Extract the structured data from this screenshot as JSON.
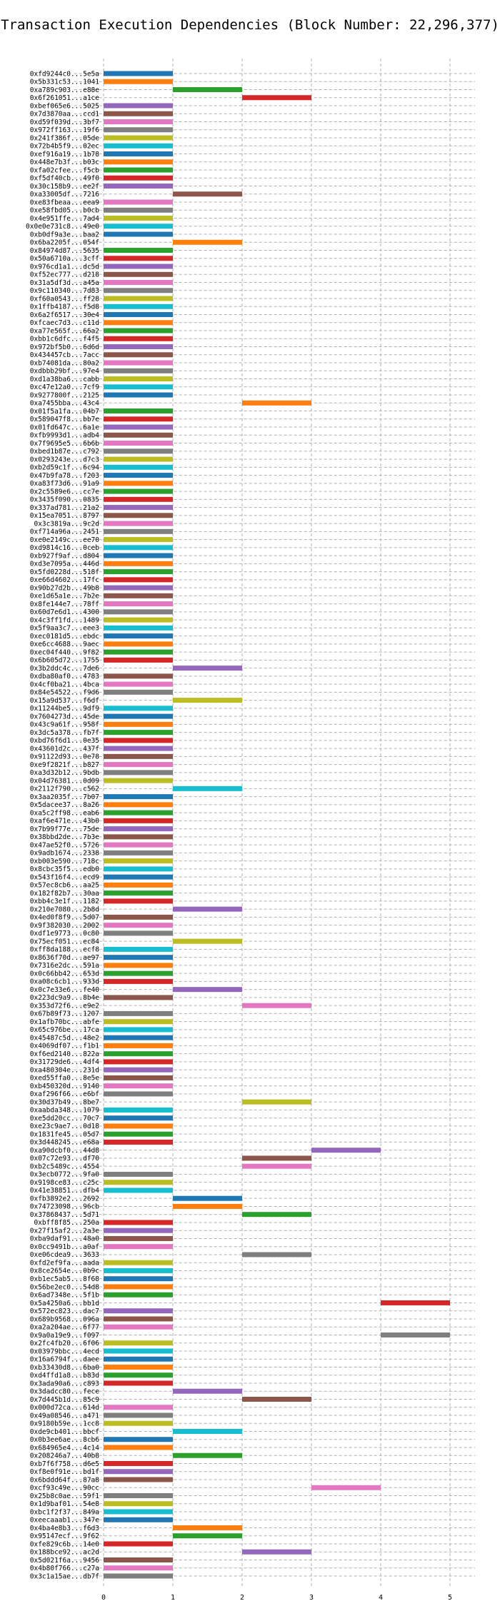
{
  "chart_data": {
    "type": "bar",
    "orientation": "horizontal-range",
    "title": "Transaction Execution Dependencies (Block Number: 22,296,377)",
    "xlabel": "",
    "ylabel": "",
    "xlim": [
      -0.55,
      5.3
    ],
    "x_ticks": [
      0,
      1,
      2,
      3,
      4,
      5
    ],
    "grid": true,
    "legend": "none",
    "colors": [
      "#1f77b4",
      "#ff7f0e",
      "#2ca02c",
      "#d62728",
      "#9467bd",
      "#8c564b",
      "#e377c2",
      "#7f7f7f",
      "#bcbd22",
      "#17becf"
    ],
    "transactions": [
      {
        "label": "0xfd9244c0...5e5a",
        "start": 0,
        "end": 1
      },
      {
        "label": "0x5b331c53...1041",
        "start": 0,
        "end": 1
      },
      {
        "label": "0xa789c903...e88e",
        "start": 1,
        "end": 2
      },
      {
        "label": "0x6f261051...a1ce",
        "start": 2,
        "end": 3
      },
      {
        "label": "0xbef065e6...5025",
        "start": 0,
        "end": 1
      },
      {
        "label": "0x7d3870aa...ccd1",
        "start": 0,
        "end": 1
      },
      {
        "label": "0xd59f039d...3bf7",
        "start": 0,
        "end": 1
      },
      {
        "label": "0x972ff163...19f6",
        "start": 0,
        "end": 1
      },
      {
        "label": "0x241f386f...05de",
        "start": 0,
        "end": 1
      },
      {
        "label": "0x72b4b5f9...02ec",
        "start": 0,
        "end": 1
      },
      {
        "label": "0xef916a19...1b78",
        "start": 0,
        "end": 1
      },
      {
        "label": "0x448e7b3f...b03c",
        "start": 0,
        "end": 1
      },
      {
        "label": "0xfa02cfee...f5cb",
        "start": 0,
        "end": 1
      },
      {
        "label": "0xf5df40cb...49f0",
        "start": 0,
        "end": 1
      },
      {
        "label": "0x30c158b9...ee2f",
        "start": 0,
        "end": 1
      },
      {
        "label": "0xa33005df...7216",
        "start": 1,
        "end": 2
      },
      {
        "label": "0xe83fbeaa...eea9",
        "start": 0,
        "end": 1
      },
      {
        "label": "0xe58fbd05...b0cb",
        "start": 0,
        "end": 1
      },
      {
        "label": "0x4e951ffe...7ad4",
        "start": 0,
        "end": 1
      },
      {
        "label": "0x0e0e731c8...49e0",
        "start": 0,
        "end": 1
      },
      {
        "label": "0xb0df9a3e...baa2",
        "start": 0,
        "end": 1
      },
      {
        "label": "0x6ba2205f...054f",
        "start": 1,
        "end": 2
      },
      {
        "label": "0x84974d87...5635",
        "start": 0,
        "end": 1
      },
      {
        "label": "0x50a6710a...3cff",
        "start": 0,
        "end": 1
      },
      {
        "label": "0x976cd1a1...dc5d",
        "start": 0,
        "end": 1
      },
      {
        "label": "0xf52ec777...d218",
        "start": 0,
        "end": 1
      },
      {
        "label": "0x31a5df3d...a45a",
        "start": 0,
        "end": 1
      },
      {
        "label": "0x9c110340...7d83",
        "start": 0,
        "end": 1
      },
      {
        "label": "0xf60a0543...ff28",
        "start": 0,
        "end": 1
      },
      {
        "label": "0x1ffb4187...f5d8",
        "start": 0,
        "end": 1
      },
      {
        "label": "0x6a2f6517...30e4",
        "start": 0,
        "end": 1
      },
      {
        "label": "0xfcaec7d3...c11d",
        "start": 0,
        "end": 1
      },
      {
        "label": "0xa77e565f...66a2",
        "start": 0,
        "end": 1
      },
      {
        "label": "0xbb1c6dfc...f4f5",
        "start": 0,
        "end": 1
      },
      {
        "label": "0x972bf5b0...6d6d",
        "start": 0,
        "end": 1
      },
      {
        "label": "0x434457cb...7acc",
        "start": 0,
        "end": 1
      },
      {
        "label": "0xb74081da...80a2",
        "start": 0,
        "end": 1
      },
      {
        "label": "0xdbbb29bf...97e4",
        "start": 0,
        "end": 1
      },
      {
        "label": "0xd1a38ba6...cabb",
        "start": 0,
        "end": 1
      },
      {
        "label": "0xc47e12a0...7cf9",
        "start": 0,
        "end": 1
      },
      {
        "label": "0x9277800f...2125",
        "start": 0,
        "end": 1
      },
      {
        "label": "0xa7455bba...43c4",
        "start": 2,
        "end": 3
      },
      {
        "label": "0x01f5a1fa...04b7",
        "start": 0,
        "end": 1
      },
      {
        "label": "0x589047f8...bb7e",
        "start": 0,
        "end": 1
      },
      {
        "label": "0x01fd647c...6a1e",
        "start": 0,
        "end": 1
      },
      {
        "label": "0xfb9993d1...adb4",
        "start": 0,
        "end": 1
      },
      {
        "label": "0x7f9695e5...6b6b",
        "start": 0,
        "end": 1
      },
      {
        "label": "0xbed1b87e...c792",
        "start": 0,
        "end": 1
      },
      {
        "label": "0x0293243e...d7c3",
        "start": 0,
        "end": 1
      },
      {
        "label": "0xb2d59c1f...6c94",
        "start": 0,
        "end": 1
      },
      {
        "label": "0x47b9fa78...f203",
        "start": 0,
        "end": 1
      },
      {
        "label": "0xa83f73d6...91a9",
        "start": 0,
        "end": 1
      },
      {
        "label": "0x2c5589e6...cc7e",
        "start": 0,
        "end": 1
      },
      {
        "label": "0x3435f090...0835",
        "start": 0,
        "end": 1
      },
      {
        "label": "0x337ad781...21a2",
        "start": 0,
        "end": 1
      },
      {
        "label": "0x15ea7051...8797",
        "start": 0,
        "end": 1
      },
      {
        "label": "0x3c3819a...9c2d",
        "start": 0,
        "end": 1
      },
      {
        "label": "0xf714a96a...2451",
        "start": 0,
        "end": 1
      },
      {
        "label": "0xe0e2149c...ee70",
        "start": 0,
        "end": 1
      },
      {
        "label": "0xd9814c16...0ceb",
        "start": 0,
        "end": 1
      },
      {
        "label": "0xb927f9af...d804",
        "start": 0,
        "end": 1
      },
      {
        "label": "0xd3e7095a...446d",
        "start": 0,
        "end": 1
      },
      {
        "label": "0x5fd0228d...518f",
        "start": 0,
        "end": 1
      },
      {
        "label": "0xe66d4602...17fc",
        "start": 0,
        "end": 1
      },
      {
        "label": "0x90b27d2b...49b8",
        "start": 0,
        "end": 1
      },
      {
        "label": "0xe1d65a1e...7b2e",
        "start": 0,
        "end": 1
      },
      {
        "label": "0x8fe144e7...78ff",
        "start": 0,
        "end": 1
      },
      {
        "label": "0x60d7e6d1...4300",
        "start": 0,
        "end": 1
      },
      {
        "label": "0x4c3ff1fd...1489",
        "start": 0,
        "end": 1
      },
      {
        "label": "0x5f9aa3c7...eee3",
        "start": 0,
        "end": 1
      },
      {
        "label": "0xec0181d5...ebdc",
        "start": 0,
        "end": 1
      },
      {
        "label": "0xe6cc4688...9aec",
        "start": 0,
        "end": 1
      },
      {
        "label": "0xec04f440...9f82",
        "start": 0,
        "end": 1
      },
      {
        "label": "0x6b605d72...1755",
        "start": 0,
        "end": 1
      },
      {
        "label": "0x3b2ddc4c...7de6",
        "start": 1,
        "end": 2
      },
      {
        "label": "0xdba80af0...4783",
        "start": 0,
        "end": 1
      },
      {
        "label": "0x4cf0ba21...4bca",
        "start": 0,
        "end": 1
      },
      {
        "label": "0x84e54522...f9d6",
        "start": 0,
        "end": 1
      },
      {
        "label": "0x15a9d537...f6df",
        "start": 1,
        "end": 2
      },
      {
        "label": "0x11244be5...9df9",
        "start": 0,
        "end": 1
      },
      {
        "label": "0x7604273d...45de",
        "start": 0,
        "end": 1
      },
      {
        "label": "0x43c9a61f...958f",
        "start": 0,
        "end": 1
      },
      {
        "label": "0x3dc5a378...fb7f",
        "start": 0,
        "end": 1
      },
      {
        "label": "0xbd76f6d1...0e35",
        "start": 0,
        "end": 1
      },
      {
        "label": "0x43601d2c...437f",
        "start": 0,
        "end": 1
      },
      {
        "label": "0x91122d93...0e78",
        "start": 0,
        "end": 1
      },
      {
        "label": "0xe9f2821f...b827",
        "start": 0,
        "end": 1
      },
      {
        "label": "0xa3d32b12...9bdb",
        "start": 0,
        "end": 1
      },
      {
        "label": "0x04d76381...0d09",
        "start": 0,
        "end": 1
      },
      {
        "label": "0x2112f790...c562",
        "start": 1,
        "end": 2
      },
      {
        "label": "0x3aa2035f...7b07",
        "start": 0,
        "end": 1
      },
      {
        "label": "0x5dacee37...8a26",
        "start": 0,
        "end": 1
      },
      {
        "label": "0xa5c2ff98...eab6",
        "start": 0,
        "end": 1
      },
      {
        "label": "0xaf6e471e...43b0",
        "start": 0,
        "end": 1
      },
      {
        "label": "0x7b99f77e...75de",
        "start": 0,
        "end": 1
      },
      {
        "label": "0x38bbd2de...7b3e",
        "start": 0,
        "end": 1
      },
      {
        "label": "0x47ae52f0...5726",
        "start": 0,
        "end": 1
      },
      {
        "label": "0x9adb1674...2338",
        "start": 0,
        "end": 1
      },
      {
        "label": "0xb003e590...718c",
        "start": 0,
        "end": 1
      },
      {
        "label": "0x8cbc35f5...edb0",
        "start": 0,
        "end": 1
      },
      {
        "label": "0x543f16f4...ecd9",
        "start": 0,
        "end": 1
      },
      {
        "label": "0x57ec8cb6...aa25",
        "start": 0,
        "end": 1
      },
      {
        "label": "0x182f82b7...30aa",
        "start": 0,
        "end": 1
      },
      {
        "label": "0xbb4c3e1f...1182",
        "start": 0,
        "end": 1
      },
      {
        "label": "0x210e7080...2b8d",
        "start": 1,
        "end": 2
      },
      {
        "label": "0x4ed0f8f9...5d07",
        "start": 0,
        "end": 1
      },
      {
        "label": "0x9f382030...2002",
        "start": 0,
        "end": 1
      },
      {
        "label": "0xdf1e9773...0c80",
        "start": 0,
        "end": 1
      },
      {
        "label": "0x75ecf051...ec84",
        "start": 1,
        "end": 2
      },
      {
        "label": "0xff8da188...ecf8",
        "start": 0,
        "end": 1
      },
      {
        "label": "0x8636f70d...ae97",
        "start": 0,
        "end": 1
      },
      {
        "label": "0x7316e2dc...591a",
        "start": 0,
        "end": 1
      },
      {
        "label": "0x0c66bb42...653d",
        "start": 0,
        "end": 1
      },
      {
        "label": "0xa08c6cb1...933d",
        "start": 0,
        "end": 1
      },
      {
        "label": "0x0c7e33e6...fe40",
        "start": 1,
        "end": 2
      },
      {
        "label": "0x223dc9a9...8b4e",
        "start": 0,
        "end": 1
      },
      {
        "label": "0x353d72f6...e9e2",
        "start": 2,
        "end": 3
      },
      {
        "label": "0x67b89f73...1207",
        "start": 0,
        "end": 1
      },
      {
        "label": "0x1afb70bc...abfe",
        "start": 0,
        "end": 1
      },
      {
        "label": "0x65c976be...17ca",
        "start": 0,
        "end": 1
      },
      {
        "label": "0x45487c5d...48e2",
        "start": 0,
        "end": 1
      },
      {
        "label": "0x4069df07...f1b1",
        "start": 0,
        "end": 1
      },
      {
        "label": "0xf6ed2140...822a",
        "start": 0,
        "end": 1
      },
      {
        "label": "0x31729de6...4df4",
        "start": 0,
        "end": 1
      },
      {
        "label": "0xa480304e...231d",
        "start": 0,
        "end": 1
      },
      {
        "label": "0xed55ffa0...8e5e",
        "start": 0,
        "end": 1
      },
      {
        "label": "0xb450320d...9140",
        "start": 0,
        "end": 1
      },
      {
        "label": "0xaf296f66...e6bf",
        "start": 0,
        "end": 1
      },
      {
        "label": "0x30d37b49...8be7",
        "start": 2,
        "end": 3
      },
      {
        "label": "0xaabda348...1079",
        "start": 0,
        "end": 1
      },
      {
        "label": "0xe5dd20cc...70c7",
        "start": 0,
        "end": 1
      },
      {
        "label": "0xe23c9ae7...0d18",
        "start": 0,
        "end": 1
      },
      {
        "label": "0x1831fe45...05d7",
        "start": 0,
        "end": 1
      },
      {
        "label": "0x3d448245...e68a",
        "start": 0,
        "end": 1
      },
      {
        "label": "0xa90dcbf0...44d8",
        "start": 3,
        "end": 4
      },
      {
        "label": "0x07c72e93...df70",
        "start": 2,
        "end": 3
      },
      {
        "label": "0xb2c5489c...4554",
        "start": 2,
        "end": 3
      },
      {
        "label": "0x3ecb0772...9fa0",
        "start": 0,
        "end": 1
      },
      {
        "label": "0x9198ce83...c25c",
        "start": 0,
        "end": 1
      },
      {
        "label": "0x41e38851...dfb4",
        "start": 0,
        "end": 1
      },
      {
        "label": "0xfb3892e2...2692",
        "start": 1,
        "end": 2
      },
      {
        "label": "0x74723098...96cb",
        "start": 1,
        "end": 2
      },
      {
        "label": "0x37868437...5d71",
        "start": 2,
        "end": 3
      },
      {
        "label": "0xbff8f85...250a",
        "start": 0,
        "end": 1
      },
      {
        "label": "0x27f15af2...2a3e",
        "start": 0,
        "end": 1
      },
      {
        "label": "0xba9daf91...48a0",
        "start": 0,
        "end": 1
      },
      {
        "label": "0x0cc9491b...a0af",
        "start": 0,
        "end": 1
      },
      {
        "label": "0xe06cdea9...3633",
        "start": 2,
        "end": 3
      },
      {
        "label": "0xfd2ef9fa...aada",
        "start": 0,
        "end": 1
      },
      {
        "label": "0x8ce2654e...0b9c",
        "start": 0,
        "end": 1
      },
      {
        "label": "0xb1ec5ab5...8f68",
        "start": 0,
        "end": 1
      },
      {
        "label": "0x56be2ec0...54d8",
        "start": 0,
        "end": 1
      },
      {
        "label": "0x6ad7348e...5f1b",
        "start": 0,
        "end": 1
      },
      {
        "label": "0x5a4250a6...bb1d",
        "start": 4,
        "end": 5
      },
      {
        "label": "0x572ec823...dac7",
        "start": 0,
        "end": 1
      },
      {
        "label": "0x689b9568...096a",
        "start": 0,
        "end": 1
      },
      {
        "label": "0xa2a204ae...6f77",
        "start": 0,
        "end": 1
      },
      {
        "label": "0x9a0a19e9...f097",
        "start": 4,
        "end": 5
      },
      {
        "label": "0x2fc4fb20...6f06",
        "start": 0,
        "end": 1
      },
      {
        "label": "0x03979bbc...4ecd",
        "start": 0,
        "end": 1
      },
      {
        "label": "0x16a6794f...daee",
        "start": 0,
        "end": 1
      },
      {
        "label": "0xb33430d8...6ba0",
        "start": 0,
        "end": 1
      },
      {
        "label": "0xd4ffd1a8...b83d",
        "start": 0,
        "end": 1
      },
      {
        "label": "0x3ada90a6...c893",
        "start": 0,
        "end": 1
      },
      {
        "label": "0x3dadcc80...fece",
        "start": 1,
        "end": 2
      },
      {
        "label": "0x7d445b1d...85c9",
        "start": 2,
        "end": 3
      },
      {
        "label": "0x000d72ca...614d",
        "start": 0,
        "end": 1
      },
      {
        "label": "0x49a08546...a471",
        "start": 0,
        "end": 1
      },
      {
        "label": "0x9180b59e...1cc8",
        "start": 0,
        "end": 1
      },
      {
        "label": "0xde9cb401...bbcf",
        "start": 1,
        "end": 2
      },
      {
        "label": "0x0b3ee6ae...8cb6",
        "start": 0,
        "end": 1
      },
      {
        "label": "0x684965e4...4c14",
        "start": 0,
        "end": 1
      },
      {
        "label": "0x208246a7...40b8",
        "start": 1,
        "end": 2
      },
      {
        "label": "0xb7f6f758...d6e5",
        "start": 0,
        "end": 1
      },
      {
        "label": "0xf8e0f91e...bd1f",
        "start": 0,
        "end": 1
      },
      {
        "label": "0x6bddd64f...87a8",
        "start": 0,
        "end": 1
      },
      {
        "label": "0xcf93c49e...90cc",
        "start": 3,
        "end": 4
      },
      {
        "label": "0x25b8c0ae...59f1",
        "start": 0,
        "end": 1
      },
      {
        "label": "0x1d9baf01...54e8",
        "start": 0,
        "end": 1
      },
      {
        "label": "0xbc1f2f37...849a",
        "start": 0,
        "end": 1
      },
      {
        "label": "0xeecaaab1...347e",
        "start": 0,
        "end": 1
      },
      {
        "label": "0x4ba4e8b3...f6d3",
        "start": 1,
        "end": 2
      },
      {
        "label": "0x95147ecf...9f62",
        "start": 1,
        "end": 2
      },
      {
        "label": "0xfe829c6b...14e0",
        "start": 0,
        "end": 1
      },
      {
        "label": "0x188bce92...ac2d",
        "start": 2,
        "end": 3
      },
      {
        "label": "0x5d021f6a...9456",
        "start": 0,
        "end": 1
      },
      {
        "label": "0x4b80f766...c27a",
        "start": 0,
        "end": 1
      },
      {
        "label": "0x3c1a15ae...db7f",
        "start": 0,
        "end": 1
      }
    ]
  }
}
